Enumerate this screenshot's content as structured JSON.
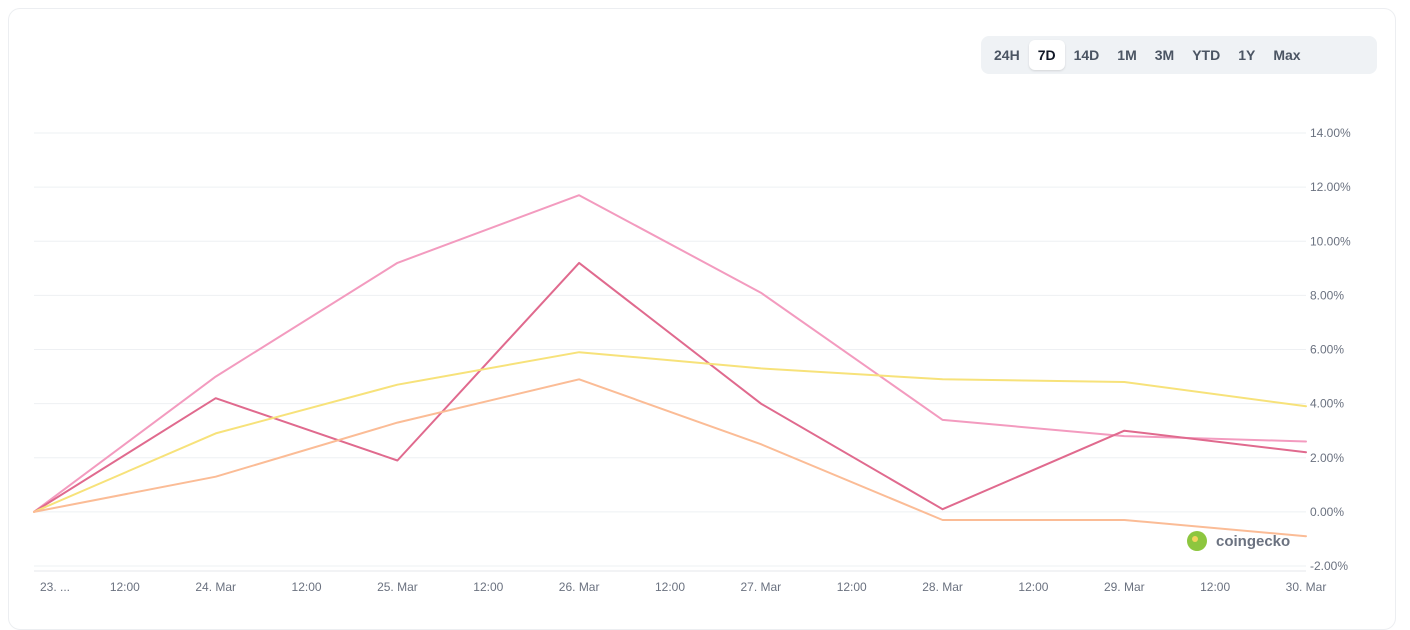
{
  "range_selector": {
    "options": [
      "24H",
      "7D",
      "14D",
      "1M",
      "3M",
      "YTD",
      "1Y",
      "Max"
    ],
    "selected": "7D"
  },
  "watermark": {
    "label": "coingecko",
    "icon": "gecko-logo-icon"
  },
  "chart_data": {
    "type": "line",
    "x_tick_labels": [
      "23. ...",
      "12:00",
      "24. Mar",
      "12:00",
      "25. Mar",
      "12:00",
      "26. Mar",
      "12:00",
      "27. Mar",
      "12:00",
      "28. Mar",
      "12:00",
      "29. Mar",
      "12:00",
      "30. Mar"
    ],
    "x": [
      "23. Mar",
      "24. Mar",
      "25. Mar",
      "26. Mar",
      "27. Mar",
      "28. Mar",
      "29. Mar",
      "30. Mar"
    ],
    "y_tick_labels": [
      "14.00%",
      "12.00%",
      "10.00%",
      "8.00%",
      "6.00%",
      "4.00%",
      "2.00%",
      "0.00%",
      "-2.00%"
    ],
    "ylim": [
      -2,
      14
    ],
    "y_unit": "%",
    "grid": true,
    "series": [
      {
        "color": "#f39bbf",
        "values": [
          0,
          5.0,
          9.2,
          11.7,
          8.1,
          3.4,
          2.8,
          2.6
        ]
      },
      {
        "color": "#e06a8e",
        "values": [
          0,
          4.2,
          1.9,
          9.2,
          4.0,
          0.1,
          3.0,
          2.2
        ]
      },
      {
        "color": "#f7e27a",
        "values": [
          0,
          2.9,
          4.7,
          5.9,
          5.3,
          4.9,
          4.8,
          3.9
        ]
      },
      {
        "color": "#fbbc96",
        "values": [
          0,
          1.3,
          3.3,
          4.9,
          2.5,
          -0.3,
          -0.3,
          -0.9
        ]
      }
    ]
  }
}
